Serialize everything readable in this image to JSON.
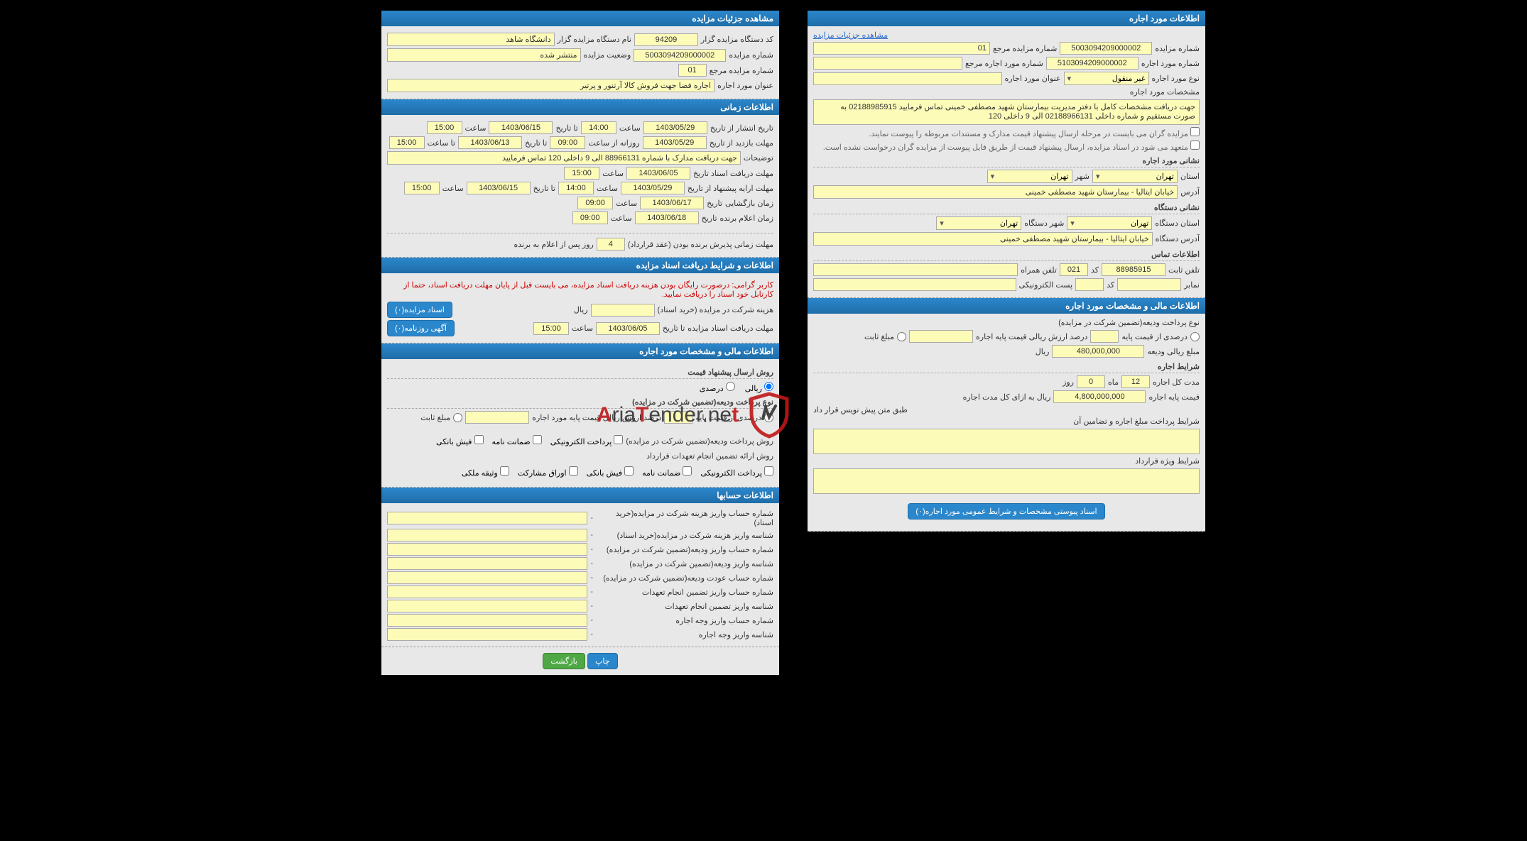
{
  "right": {
    "sec1": {
      "title": "مشاهده جزئیات مزایده",
      "r1": {
        "l1": "کد دستگاه مزایده گزار",
        "v1": "94209",
        "l2": "نام دستگاه مزایده گزار",
        "v2": "دانشگاه شاهد"
      },
      "r2": {
        "l1": "شماره مزایده",
        "v1": "5003094209000002",
        "l2": "وضعیت مزایده",
        "v2": "منتشر شده"
      },
      "r3": {
        "l1": "شماره مزایده مرجع",
        "v1": "01"
      },
      "r4": {
        "l1": "عنوان مورد اجاره",
        "v1": "اجاره فضا جهت فروش کالا آرتنور و پرتیر"
      }
    },
    "sec2": {
      "title": "اطلاعات زمانی",
      "r1": {
        "l1": "تاریخ انتشار   از تاریخ",
        "v1": "1403/05/29",
        "l2": "ساعت",
        "v2": "14:00",
        "l3": "تا تاریخ",
        "v3": "1403/06/15",
        "l4": "ساعت",
        "v4": "15:00"
      },
      "r2": {
        "l1": "مهلت بازدید   از تاریخ",
        "v1": "1403/05/29",
        "l2": "روزانه از ساعت",
        "v2": "09:00",
        "l3": "تا تاریخ",
        "v3": "1403/06/13",
        "l4": "تا ساعت",
        "v4": "15:00"
      },
      "r3": {
        "l1": "توضیحات",
        "v1": "جهت دریافت مدارک با شماره 88966131 الی 9 داخلی 120 تماس فرمایید"
      },
      "r4": {
        "l1": "مهلت دریافت اسناد   تاریخ",
        "v1": "1403/06/05",
        "l2": "ساعت",
        "v2": "15:00"
      },
      "r5": {
        "l1": "مهلت ارایه پیشنهاد   از تاریخ",
        "v1": "1403/05/29",
        "l2": "ساعت",
        "v2": "14:00",
        "l3": "تا تاریخ",
        "v3": "1403/06/15",
        "l4": "ساعت",
        "v4": "15:00"
      },
      "r6": {
        "l1": "زمان بازگشایی",
        "l2": "تاریخ",
        "v1": "1403/06/17",
        "l3": "ساعت",
        "v2": "09:00"
      },
      "r7": {
        "l1": "زمان اعلام برنده",
        "l2": "تاریخ",
        "v1": "1403/06/18",
        "l3": "ساعت",
        "v2": "09:00"
      },
      "r8": {
        "l1": "مهلت زمانی پذیرش برنده بودن (عقد قرارداد)",
        "v1": "4",
        "l2": "روز پس از اعلام به برنده"
      }
    },
    "sec3": {
      "title": "اطلاعات و شرایط دریافت اسناد مزایده",
      "warn": "کاربر گرامی: درصورت رایگان بودن هزینه دریافت اسناد مزایده، می بایست قبل از پایان مهلت دریافت اسناد، حتما از کارتابل خود اسناد را دریافت نمایید.",
      "r1": {
        "l1": "هزینه شرکت در مزایده (خرید اسناد)",
        "v1": "",
        "l2": "ریال",
        "btn": "اسناد مزایده(۰)"
      },
      "r2": {
        "l1": "مهلت دریافت اسناد مزایده",
        "l2": "تا تاریخ",
        "v1": "1403/06/05",
        "l3": "ساعت",
        "v2": "15:00",
        "btn": "آگهی روزنامه(۰)"
      }
    },
    "sec4": {
      "title": "اطلاعات مالی و مشخصات مورد اجاره",
      "sub1": "روش ارسال پیشنهاد قیمت",
      "radio1": {
        "a": "ریالی",
        "b": "درصدی"
      },
      "sub2": "نوع پرداخت ودیعه(تضمین شرکت در مزایده)",
      "r1": {
        "l1": "درصدی از قیمت پایه",
        "v1": "",
        "l2": "درصد ارزش ریالی قیمت پایه مورد اجاره",
        "v2": "",
        "l3": "مبلغ ثابت"
      },
      "sub3_l": "روش پرداخت ودیعه(تضمین شرکت در مزایده)",
      "chk1": {
        "a": "پرداخت الکترونیکی",
        "b": "ضمانت نامه",
        "c": "فیش بانکی"
      },
      "sub4_l": "روش ارائه تضمین انجام تعهدات قرارداد",
      "chk2": {
        "a": "پرداخت الکترونیکی",
        "b": "ضمانت نامه",
        "c": "فیش بانکی",
        "d": "اوراق مشارکت",
        "e": "وثیقه ملکی"
      }
    },
    "sec5": {
      "title": "اطلاعات حسابها",
      "rows": [
        "شماره حساب واریز هزینه شرکت در مزایده(خرید اسناد)",
        "شناسه واریز هزینه شرکت در مزایده(خرید اسناد)",
        "شماره حساب واریز ودیعه(تضمین شرکت در مزایده)",
        "شناسه واریز ودیعه(تضمین شرکت در مزایده)",
        "شماره حساب عودت ودیعه(تضمین شرکت در مزایده)",
        "شماره حساب واریز تضمین انجام تعهدات",
        "شناسه واریز تضمین انجام تعهدات",
        "شماره حساب واریز وجه اجاره",
        "شناسه واریز وجه اجاره"
      ]
    },
    "footer": {
      "print": "چاپ",
      "back": "بازگشت"
    }
  },
  "left": {
    "sec1": {
      "title": "اطلاعات مورد اجاره",
      "link": "مشاهده جزئیات مزایده",
      "r1": {
        "l1": "شماره مزایده",
        "v1": "5003094209000002",
        "l2": "شماره مزایده مرجع",
        "v2": "01"
      },
      "r2": {
        "l1": "شماره مورد اجاره",
        "v1": "5103094209000002",
        "l2": "شماره مورد اجاره مرجع",
        "v2": ""
      },
      "r3": {
        "l1": "نوع مورد اجاره",
        "v1": "غیر منقول",
        "l2": "عنوان مورد اجاره",
        "v2": ""
      },
      "r4": {
        "l1": "مشخصات مورد اجاره",
        "v1": "جهت دریافت مشخصات کامل با دفتر مدیریت بیمارستان شهید مصطفی خمینی تماس فرمایید 02188985915 به صورت مستقیم و شماره داخلی 02188966131 الی 9 داخلی 120"
      },
      "note1": "مزایده گران می بایست در مرحله ارسال پیشنهاد قیمت مدارک و مستندات مربوطه را پیوست نمایند.",
      "note2": "متعهد می شود در اسناد مزایده، ارسال پیشنهاد قیمت از طریق فایل پیوست از مزایده گران درخواست نشده است.",
      "sub1": "نشانی مورد اجاره",
      "r5": {
        "l1": "استان",
        "v1": "تهران",
        "l2": "شهر",
        "v2": "تهران"
      },
      "r6": {
        "l1": "آدرس",
        "v1": "خیابان ایتالیا - بیمارستان شهید مصطفی خمینی"
      },
      "sub2": "نشانی دستگاه",
      "r7": {
        "l1": "استان دستگاه",
        "v1": "تهران",
        "l2": "شهر دستگاه",
        "v2": "تهران"
      },
      "r8": {
        "l1": "آدرس دستگاه",
        "v1": "خیابان ایتالیا - بیمارستان شهید مصطفی خمینی"
      },
      "sub3": "اطلاعات تماس",
      "r9": {
        "l1": "تلفن ثابت",
        "v1": "88985915",
        "l2": "کد",
        "v2": "021",
        "l3": "تلفن همراه",
        "v3": ""
      },
      "r10": {
        "l1": "نمابر",
        "v1": "",
        "l2": "کد",
        "v2": "",
        "l3": "پست الکترونیکی",
        "v3": ""
      }
    },
    "sec2": {
      "title": "اطلاعات مالی و مشخصات مورد اجاره",
      "sub1": "نوع پرداخت ودیعه(تضمین شرکت در مزایده)",
      "r1": {
        "l1": "درصدی از قیمت پایه",
        "v1": "",
        "l2": "درصد ارزش ریالی قیمت پایه اجاره",
        "v2": "",
        "l3": "مبلغ ثابت"
      },
      "r2": {
        "l1": "مبلغ ریالی ودیعه",
        "v1": "480,000,000",
        "l2": "ریال"
      },
      "sub2": "شرایط اجاره",
      "r3": {
        "l1": "مدت کل اجاره",
        "v1": "12",
        "l2": "ماه",
        "v2": "0",
        "l3": "روز"
      },
      "r4": {
        "l1": "قیمت پایه اجاره",
        "v1": "4,800,000,000",
        "l2": "ریال به ازای کل مدت اجاره"
      },
      "r5": {
        "l1": "",
        "v1": "طبق متن پیش نویس قرار داد"
      },
      "r6": {
        "l1": "شرایط پرداخت مبلغ اجاره و تضامین آن",
        "v1": ""
      },
      "r7": {
        "l1": "شرایط ویژه قرارداد",
        "v1": ""
      },
      "btn": "اسناد پیوستی مشخصات و شرایط عمومی مورد اجاره(۰)"
    }
  }
}
